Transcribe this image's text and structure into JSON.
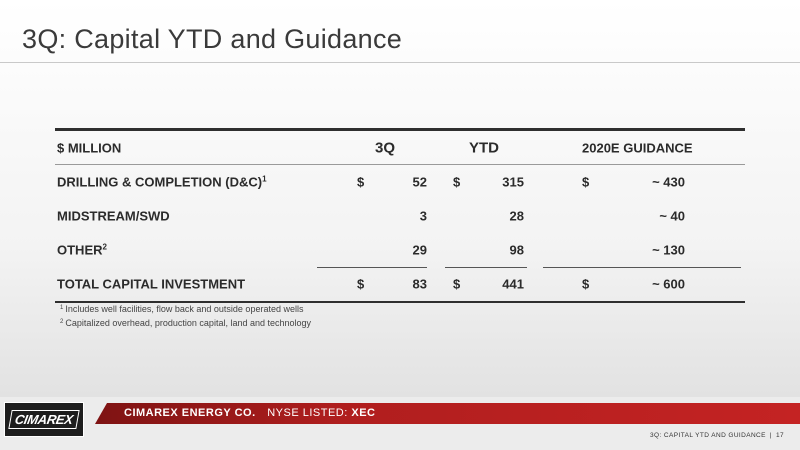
{
  "slide": {
    "title": "3Q: Capital YTD and Guidance",
    "footer_slide_title": "3Q: CAPITAL YTD AND GUIDANCE",
    "separator": "|",
    "page_number": "17"
  },
  "table": {
    "headers": {
      "label": "$ MILLION",
      "col_3q": "3Q",
      "col_ytd": "YTD",
      "col_guidance": "2020E GUIDANCE"
    },
    "rows": [
      {
        "label": "DRILLING & COMPLETION (D&C)",
        "sup": "1",
        "q3_dollar": "$",
        "q3": "52",
        "ytd_dollar": "$",
        "ytd": "315",
        "g_dollar": "$",
        "guidance": "~ 430"
      },
      {
        "label": "MIDSTREAM/SWD",
        "sup": "",
        "q3_dollar": "",
        "q3": "3",
        "ytd_dollar": "",
        "ytd": "28",
        "g_dollar": "",
        "guidance": "~  40"
      },
      {
        "label": "OTHER",
        "sup": "2",
        "q3_dollar": "",
        "q3": "29",
        "ytd_dollar": "",
        "ytd": "98",
        "g_dollar": "",
        "guidance": "~ 130"
      },
      {
        "label": "TOTAL CAPITAL INVESTMENT",
        "sup": "",
        "q3_dollar": "$",
        "q3": "83",
        "ytd_dollar": "$",
        "ytd": "441",
        "g_dollar": "$",
        "guidance": "~ 600"
      }
    ]
  },
  "footnotes": [
    {
      "mark": "1",
      "text": "Includes well facilities, flow back and outside operated wells"
    },
    {
      "mark": "2",
      "text": "Capitalized overhead, production capital, land and technology"
    }
  ],
  "footer": {
    "logo_text": "CIMAREX",
    "company": "CIMAREX ENERGY CO.",
    "listed_label": "NYSE LISTED:",
    "ticker": "XEC"
  }
}
